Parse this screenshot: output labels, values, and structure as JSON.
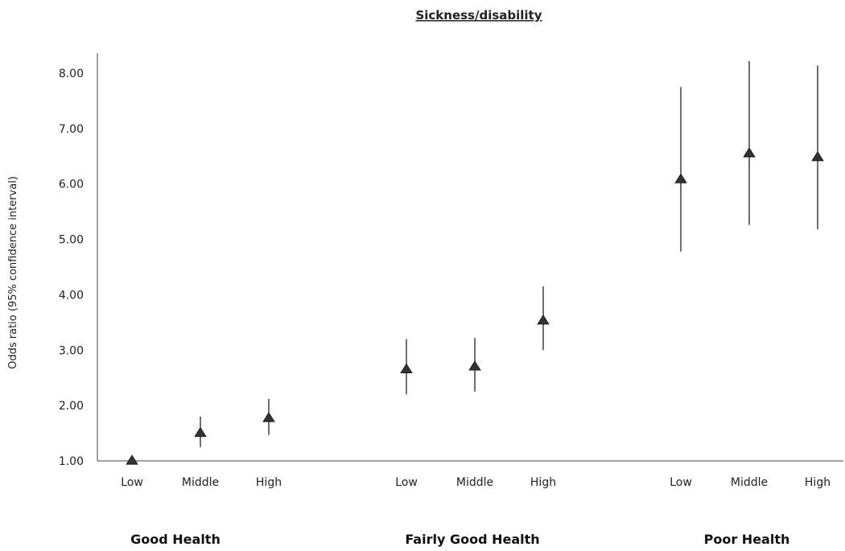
{
  "chart_data": {
    "type": "scatter",
    "title": "Sickness/disability",
    "xlabel": "",
    "ylabel": "Odds ratio (95% confidence interval)",
    "ylim": [
      1.0,
      8.2
    ],
    "yticks": [
      "1.00",
      "2.00",
      "3.00",
      "4.00",
      "5.00",
      "6.00",
      "7.00",
      "8.00"
    ],
    "grid": false,
    "marker": "triangle",
    "marker_color": "#333333",
    "groups": [
      {
        "name": "Good Health",
        "points": [
          {
            "category": "Low",
            "value": 1.0,
            "lower": 1.0,
            "upper": 1.0
          },
          {
            "category": "Middle",
            "value": 1.5,
            "lower": 1.25,
            "upper": 1.8
          },
          {
            "category": "High",
            "value": 1.77,
            "lower": 1.47,
            "upper": 2.12
          }
        ]
      },
      {
        "name": "Fairly Good Health",
        "points": [
          {
            "category": "Low",
            "value": 2.65,
            "lower": 2.2,
            "upper": 3.2
          },
          {
            "category": "Middle",
            "value": 2.7,
            "lower": 2.25,
            "upper": 3.22
          },
          {
            "category": "High",
            "value": 3.53,
            "lower": 3.0,
            "upper": 4.15
          }
        ]
      },
      {
        "name": "Poor Health",
        "points": [
          {
            "category": "Low",
            "value": 6.08,
            "lower": 4.78,
            "upper": 7.75
          },
          {
            "category": "Middle",
            "value": 6.55,
            "lower": 5.26,
            "upper": 8.22
          },
          {
            "category": "High",
            "value": 6.48,
            "lower": 5.18,
            "upper": 8.14
          }
        ]
      }
    ]
  }
}
